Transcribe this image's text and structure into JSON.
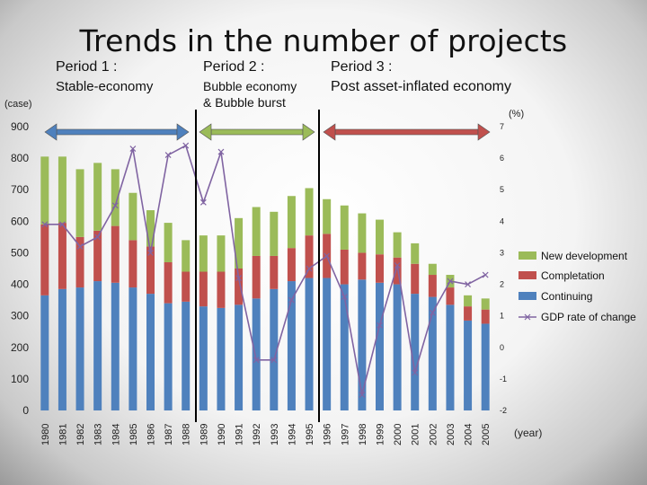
{
  "title": "Trends in the number of projects",
  "periods": [
    {
      "heading": "Period 1 :",
      "lines": [
        "Stable-economy"
      ]
    },
    {
      "heading": "Period 2 :",
      "lines": [
        "Bubble economy",
        "& Bubble burst"
      ]
    },
    {
      "heading": "Period 3 :",
      "lines": [
        "Post  asset-inflated economy"
      ]
    }
  ],
  "colors": {
    "new_development": "#9bbb59",
    "completation": "#c0504d",
    "continuing": "#4f81bd",
    "gdp_line": "#8064a2",
    "period_arrow_1": "#4f81bd",
    "period_arrow_2": "#9bbb59",
    "period_arrow_3": "#c0504d",
    "divider": "#000000"
  },
  "chart_data": {
    "type": "bar",
    "stacked": true,
    "ylabel": "(case)",
    "y2label": "(%)",
    "xlabel": "(year)",
    "ylim": [
      0,
      900
    ],
    "y_ticks": [
      "0",
      "100",
      "200",
      "300",
      "400",
      "500",
      "600",
      "700",
      "800",
      "900"
    ],
    "y2lim": [
      -2,
      7
    ],
    "y2_ticks": [
      "-2",
      "-1",
      "0",
      "1",
      "2",
      "3",
      "4",
      "5",
      "6",
      "7"
    ],
    "grid": false,
    "legend_position": "right",
    "categories": [
      "1980",
      "1981",
      "1982",
      "1983",
      "1984",
      "1985",
      "1986",
      "1987",
      "1988",
      "1989",
      "1990",
      "1991",
      "1992",
      "1993",
      "1994",
      "1995",
      "1996",
      "1997",
      "1998",
      "1999",
      "2000",
      "2001",
      "2002",
      "2003",
      "2004",
      "2005"
    ],
    "series": [
      {
        "name": "Continuing",
        "type": "bar",
        "values": [
          365,
          385,
          390,
          410,
          405,
          390,
          370,
          340,
          345,
          330,
          325,
          335,
          355,
          385,
          410,
          420,
          420,
          400,
          415,
          405,
          400,
          370,
          360,
          335,
          285,
          275
        ]
      },
      {
        "name": "Completation",
        "type": "bar",
        "values": [
          225,
          210,
          160,
          160,
          180,
          150,
          150,
          130,
          95,
          110,
          115,
          115,
          135,
          105,
          105,
          135,
          140,
          110,
          85,
          90,
          85,
          95,
          70,
          55,
          45,
          45
        ]
      },
      {
        "name": "New development",
        "type": "bar",
        "values": [
          215,
          210,
          215,
          215,
          180,
          150,
          115,
          125,
          100,
          115,
          115,
          160,
          155,
          140,
          165,
          150,
          110,
          140,
          125,
          110,
          80,
          65,
          35,
          40,
          35,
          35
        ]
      },
      {
        "name": "GDP rate of change",
        "type": "line",
        "axis": "secondary",
        "values": [
          3.9,
          3.9,
          3.2,
          3.5,
          4.5,
          6.3,
          3.0,
          6.1,
          6.4,
          4.6,
          6.2,
          2.2,
          -0.4,
          -0.4,
          1.5,
          2.5,
          2.9,
          1.6,
          -1.5,
          0.7,
          2.6,
          -0.8,
          1.1,
          2.1,
          2.0,
          2.3
        ]
      }
    ]
  }
}
